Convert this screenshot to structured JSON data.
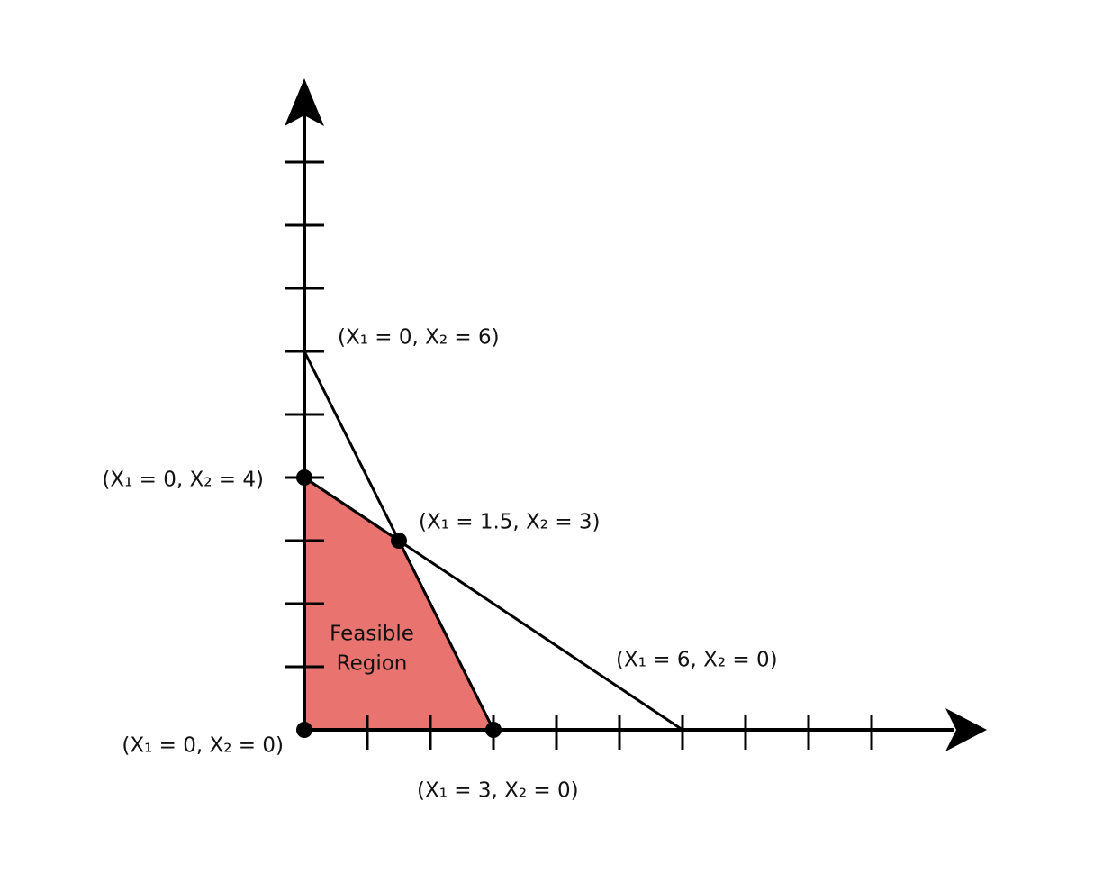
{
  "chart_data": {
    "type": "scatter",
    "xlim": [
      0,
      10.8
    ],
    "ylim": [
      0,
      10.3
    ],
    "xticks": [
      1,
      2,
      3,
      4,
      5,
      6,
      7,
      8,
      9
    ],
    "yticks": [
      1,
      2,
      3,
      4,
      5,
      6,
      7,
      8,
      9
    ],
    "lines": [
      {
        "x": [
          0,
          3
        ],
        "y": [
          6,
          0
        ]
      },
      {
        "x": [
          0,
          6
        ],
        "y": [
          4,
          0
        ]
      }
    ],
    "region": {
      "label": [
        "Feasible",
        "Region"
      ],
      "color": "#e8736f",
      "x": [
        0,
        0,
        1.5,
        3
      ],
      "y": [
        0,
        4,
        3,
        0
      ]
    },
    "points": [
      {
        "x": 0,
        "y": 6,
        "label": "(X₁ = 0, X₂ = 6)",
        "dot": false
      },
      {
        "x": 0,
        "y": 4,
        "label": "(X₁ = 0, X₂ = 4)",
        "dot": true
      },
      {
        "x": 1.5,
        "y": 3,
        "label": "(X₁ = 1.5, X₂ = 3)",
        "dot": true
      },
      {
        "x": 6,
        "y": 0,
        "label": "(X₁ = 6, X₂ = 0)",
        "dot": false
      },
      {
        "x": 0,
        "y": 0,
        "label": "(X₁ = 0, X₂ = 0)",
        "dot": true
      },
      {
        "x": 3,
        "y": 0,
        "label": "(X₁ = 3, X₂ = 0)",
        "dot": true
      }
    ]
  }
}
